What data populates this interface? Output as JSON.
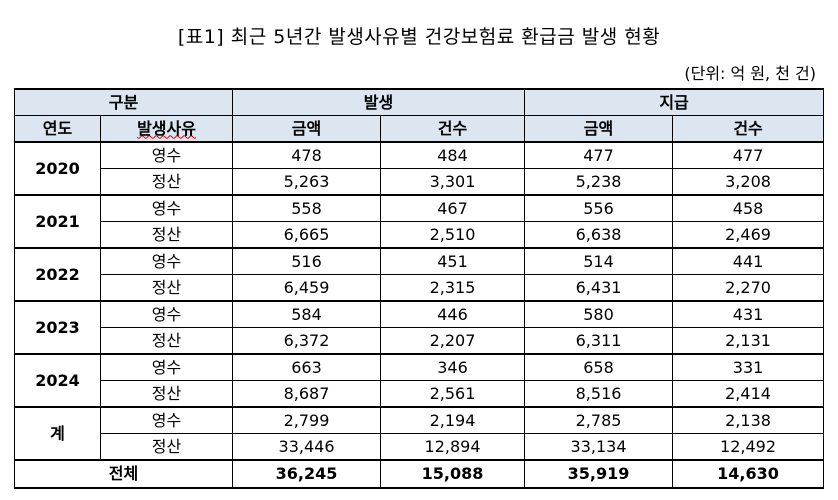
{
  "title": "[표1] 최근 5년간 발생사유별 건강보험료 환급금 발생 현황",
  "unit": "(단위: 억 원, 천 건)",
  "table": {
    "header": {
      "group": "구분",
      "occur": "발생",
      "pay": "지급",
      "year": "연도",
      "reason": "발생사유",
      "cols": [
        "금액",
        "건수",
        "금액",
        "건수"
      ]
    },
    "groups": [
      {
        "year": "2020",
        "rows": [
          {
            "reason": "영수",
            "cells": [
              "478",
              "484",
              "477",
              "477"
            ]
          },
          {
            "reason": "정산",
            "cells": [
              "5,263",
              "3,301",
              "5,238",
              "3,208"
            ]
          }
        ]
      },
      {
        "year": "2021",
        "rows": [
          {
            "reason": "영수",
            "cells": [
              "558",
              "467",
              "556",
              "458"
            ]
          },
          {
            "reason": "정산",
            "cells": [
              "6,665",
              "2,510",
              "6,638",
              "2,469"
            ]
          }
        ]
      },
      {
        "year": "2022",
        "rows": [
          {
            "reason": "영수",
            "cells": [
              "516",
              "451",
              "514",
              "441"
            ]
          },
          {
            "reason": "정산",
            "cells": [
              "6,459",
              "2,315",
              "6,431",
              "2,270"
            ]
          }
        ]
      },
      {
        "year": "2023",
        "rows": [
          {
            "reason": "영수",
            "cells": [
              "584",
              "446",
              "580",
              "431"
            ]
          },
          {
            "reason": "정산",
            "cells": [
              "6,372",
              "2,207",
              "6,311",
              "2,131"
            ]
          }
        ]
      },
      {
        "year": "2024",
        "rows": [
          {
            "reason": "영수",
            "cells": [
              "663",
              "346",
              "658",
              "331"
            ]
          },
          {
            "reason": "정산",
            "cells": [
              "8,687",
              "2,561",
              "8,516",
              "2,414"
            ]
          }
        ]
      },
      {
        "year": "계",
        "rows": [
          {
            "reason": "영수",
            "cells": [
              "2,799",
              "2,194",
              "2,785",
              "2,138"
            ]
          },
          {
            "reason": "정산",
            "cells": [
              "33,446",
              "12,894",
              "33,134",
              "12,492"
            ]
          }
        ]
      }
    ],
    "total": {
      "label": "전체",
      "cells": [
        "36,245",
        "15,088",
        "35,919",
        "14,630"
      ]
    }
  }
}
